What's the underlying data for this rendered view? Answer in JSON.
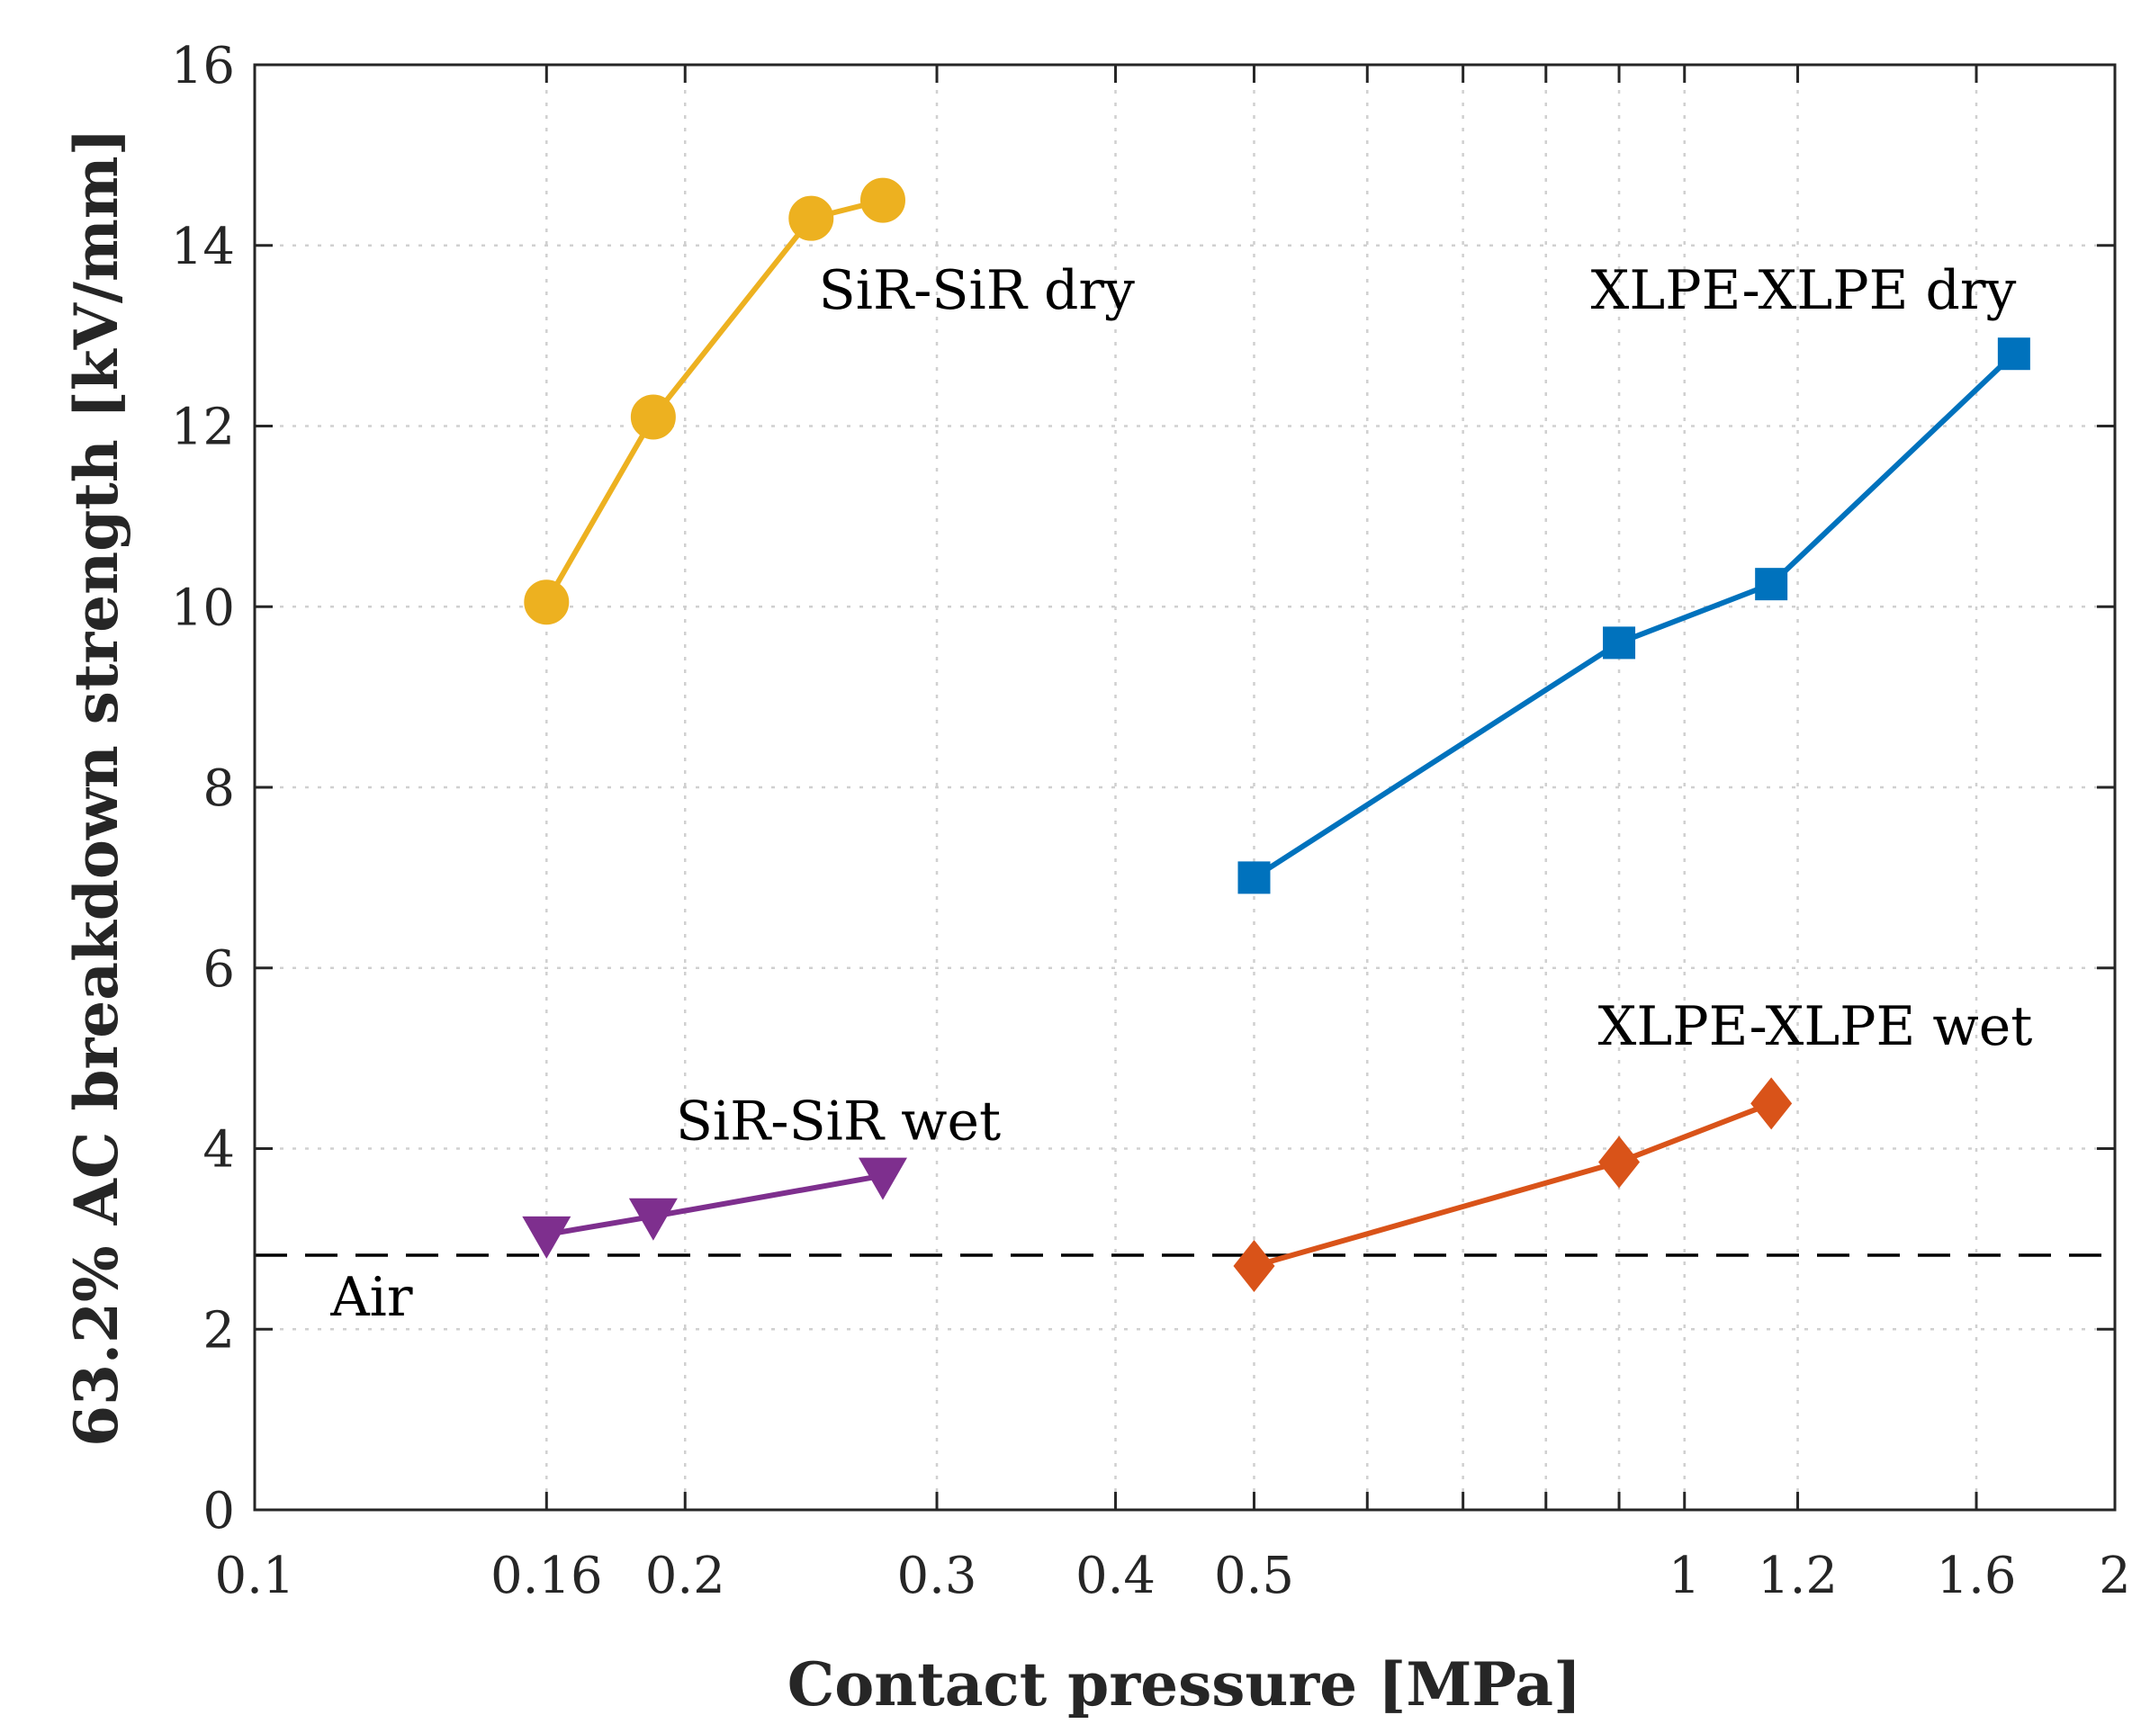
{
  "chart_data": {
    "type": "line",
    "xscale": "log",
    "xlabel": "Contact pressure [MPa]",
    "ylabel": "63.2% AC breakdown strength [kV/mm]",
    "xlim": [
      0.1,
      2
    ],
    "ylim": [
      0,
      16
    ],
    "grid": true,
    "xticks": [
      {
        "value": 0.1,
        "label": "0.1"
      },
      {
        "value": 0.16,
        "label": "0.16"
      },
      {
        "value": 0.2,
        "label": "0.2"
      },
      {
        "value": 0.3,
        "label": "0.3"
      },
      {
        "value": 0.4,
        "label": "0.4"
      },
      {
        "value": 0.5,
        "label": "0.5"
      },
      {
        "value": 1,
        "label": "1"
      },
      {
        "value": 1.2,
        "label": "1.2"
      },
      {
        "value": 1.6,
        "label": "1.6"
      },
      {
        "value": 2,
        "label": "2"
      }
    ],
    "xminor": [
      0.6,
      0.7,
      0.8,
      0.9
    ],
    "yticks": [
      {
        "value": 0,
        "label": "0"
      },
      {
        "value": 2,
        "label": "2"
      },
      {
        "value": 4,
        "label": "4"
      },
      {
        "value": 6,
        "label": "6"
      },
      {
        "value": 8,
        "label": "8"
      },
      {
        "value": 10,
        "label": "10"
      },
      {
        "value": 12,
        "label": "12"
      },
      {
        "value": 14,
        "label": "14"
      },
      {
        "value": 16,
        "label": "16"
      }
    ],
    "series": [
      {
        "name": "SiR-SiR dry",
        "color": "#EDB120",
        "marker": "circle",
        "x": [
          0.16,
          0.19,
          0.245,
          0.275
        ],
        "y": [
          10.05,
          12.1,
          14.3,
          14.5
        ]
      },
      {
        "name": "XLPE-XLPE dry",
        "color": "#0072BD",
        "marker": "square",
        "x": [
          0.5,
          0.9,
          1.15,
          1.7
        ],
        "y": [
          7.0,
          9.6,
          10.25,
          12.8
        ]
      },
      {
        "name": "SiR-SiR wet",
        "color": "#7E2F8E",
        "marker": "triangle-down",
        "x": [
          0.16,
          0.19,
          0.275
        ],
        "y": [
          3.05,
          3.25,
          3.7
        ]
      },
      {
        "name": "XLPE-XLPE wet",
        "color": "#D95319",
        "marker": "diamond",
        "x": [
          0.5,
          0.9,
          1.15
        ],
        "y": [
          2.7,
          3.85,
          4.5
        ]
      }
    ],
    "reference_line": {
      "name": "Air",
      "y": 2.82,
      "style": "dashed",
      "color": "#000000"
    },
    "annotations": [
      {
        "text": "SiR-SiR dry",
        "x": 0.248,
        "y": 13.3
      },
      {
        "text": "XLPE-XLPE dry",
        "x": 0.86,
        "y": 13.3
      },
      {
        "text": "SiR-SiR wet",
        "x": 0.197,
        "y": 4.1
      },
      {
        "text": "XLPE-XLPE wet",
        "x": 0.87,
        "y": 5.15
      },
      {
        "text": "Air",
        "x": 0.113,
        "y": 2.15
      }
    ]
  }
}
